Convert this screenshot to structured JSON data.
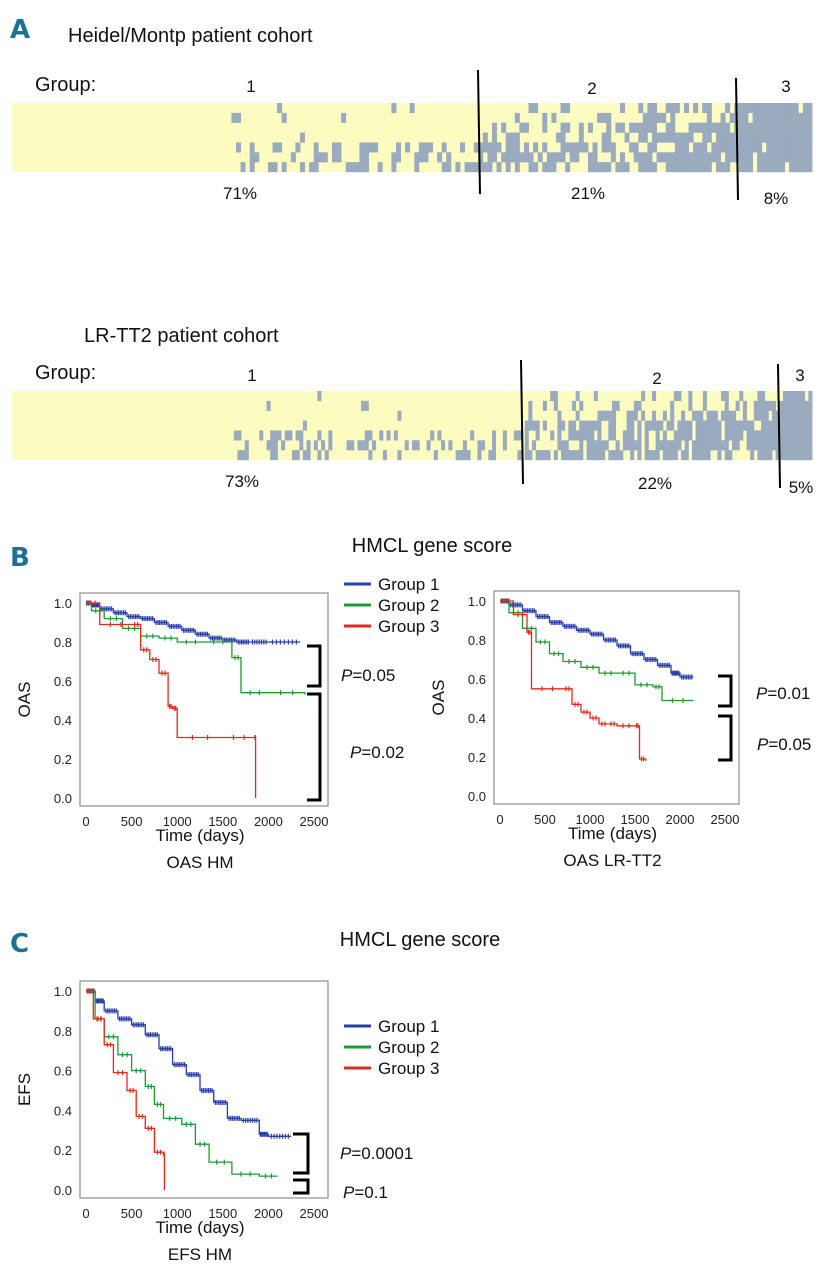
{
  "panel_letters": [
    "A",
    "B",
    "C"
  ],
  "heatmap_cohorts": [
    {
      "title": "Heidel/Montp patient cohort",
      "group_label": "Group:",
      "groups": [
        "1",
        "2",
        "3"
      ],
      "percentages": [
        "71%",
        "21%",
        "8%"
      ],
      "rows": 7,
      "columns": 175,
      "group_fractions": [
        0.71,
        0.21,
        0.08
      ],
      "colors": {
        "background": "#fdfcc0",
        "mark": "#9aaabf",
        "divider": "#000000"
      }
    },
    {
      "title": "LR-TT2 patient cohort",
      "group_label": "Group:",
      "groups": [
        "1",
        "2",
        "3"
      ],
      "percentages": [
        "73%",
        "22%",
        "5%"
      ],
      "rows": 7,
      "columns": 220,
      "group_fractions": [
        0.73,
        0.22,
        0.05
      ],
      "colors": {
        "background": "#fdfcc0",
        "mark": "#9aaabf",
        "divider": "#000000"
      }
    }
  ],
  "section_titles": {
    "B": "HMCL gene score",
    "C": "HMCL gene score"
  },
  "legend": [
    {
      "name": "Group 1",
      "color": "#2a3fa8"
    },
    {
      "name": "Group 2",
      "color": "#1e9a35"
    },
    {
      "name": "Group 3",
      "color": "#e02a1e"
    }
  ],
  "chart_data": [
    {
      "type": "line",
      "subtype": "kaplan-meier",
      "caption": "OAS HM",
      "xlabel": "Time (days)",
      "ylabel": "OAS",
      "xlim": [
        0,
        2500
      ],
      "ylim": [
        0,
        1
      ],
      "xticks": [
        0,
        500,
        1000,
        1500,
        2000,
        2500
      ],
      "yticks": [
        0.0,
        0.2,
        0.4,
        0.6,
        0.8,
        1.0
      ],
      "series": [
        {
          "name": "Group 1",
          "x": [
            0,
            60,
            150,
            300,
            450,
            600,
            750,
            900,
            1050,
            1200,
            1350,
            1500,
            1650,
            1800,
            2000,
            2350
          ],
          "y": [
            1.0,
            0.99,
            0.97,
            0.95,
            0.93,
            0.92,
            0.9,
            0.88,
            0.86,
            0.84,
            0.82,
            0.81,
            0.8,
            0.8,
            0.8,
            0.8
          ]
        },
        {
          "name": "Group 2",
          "x": [
            0,
            60,
            200,
            400,
            600,
            800,
            1000,
            1300,
            1600,
            1700,
            2000,
            2400
          ],
          "y": [
            1.0,
            0.96,
            0.92,
            0.87,
            0.83,
            0.82,
            0.8,
            0.8,
            0.72,
            0.54,
            0.54,
            0.53
          ]
        },
        {
          "name": "Group 3",
          "x": [
            0,
            150,
            500,
            600,
            700,
            800,
            900,
            950,
            1000,
            1500,
            1850,
            1860
          ],
          "y": [
            1.0,
            0.89,
            0.89,
            0.76,
            0.71,
            0.64,
            0.47,
            0.46,
            0.31,
            0.31,
            0.31,
            0.0
          ]
        }
      ],
      "annotations": [
        {
          "text": "=0.05",
          "italic_prefix": "P"
        },
        {
          "text": "=0.02",
          "italic_prefix": "P"
        }
      ]
    },
    {
      "type": "line",
      "subtype": "kaplan-meier",
      "caption": "OAS LR-TT2",
      "xlabel": "Time (days)",
      "ylabel": "OAS",
      "xlim": [
        0,
        2500
      ],
      "ylim": [
        0,
        1
      ],
      "xticks": [
        0,
        500,
        1000,
        1500,
        2000,
        2500
      ],
      "yticks": [
        0.0,
        0.2,
        0.4,
        0.6,
        0.8,
        1.0
      ],
      "series": [
        {
          "name": "Group 1",
          "x": [
            0,
            100,
            250,
            400,
            550,
            700,
            850,
            1000,
            1150,
            1300,
            1450,
            1600,
            1750,
            1900,
            2000,
            2150
          ],
          "y": [
            1.0,
            0.98,
            0.95,
            0.92,
            0.89,
            0.87,
            0.85,
            0.83,
            0.8,
            0.77,
            0.73,
            0.7,
            0.67,
            0.63,
            0.61,
            0.61
          ]
        },
        {
          "name": "Group 2",
          "x": [
            0,
            100,
            250,
            400,
            550,
            700,
            900,
            1100,
            1300,
            1500,
            1700,
            1800,
            2150
          ],
          "y": [
            1.0,
            0.94,
            0.86,
            0.79,
            0.73,
            0.69,
            0.66,
            0.63,
            0.63,
            0.57,
            0.56,
            0.49,
            0.49
          ]
        },
        {
          "name": "Group 3",
          "x": [
            0,
            150,
            300,
            350,
            700,
            800,
            900,
            1000,
            1100,
            1200,
            1300,
            1500,
            1550,
            1620
          ],
          "y": [
            1.0,
            0.93,
            0.84,
            0.55,
            0.55,
            0.47,
            0.43,
            0.4,
            0.37,
            0.37,
            0.36,
            0.36,
            0.19,
            0.18
          ]
        }
      ],
      "annotations": [
        {
          "text": "=0.01",
          "italic_prefix": "P"
        },
        {
          "text": "=0.05",
          "italic_prefix": "P"
        }
      ]
    },
    {
      "type": "line",
      "subtype": "kaplan-meier",
      "caption": "EFS HM",
      "xlabel": "Time (days)",
      "ylabel": "EFS",
      "xlim": [
        0,
        2500
      ],
      "ylim": [
        0,
        1
      ],
      "xticks": [
        0,
        500,
        1000,
        1500,
        2000,
        2500
      ],
      "yticks": [
        0.0,
        0.2,
        0.4,
        0.6,
        0.8,
        1.0
      ],
      "series": [
        {
          "name": "Group 1",
          "x": [
            0,
            100,
            200,
            350,
            500,
            650,
            800,
            950,
            1100,
            1250,
            1400,
            1550,
            1700,
            1900,
            2000,
            2250
          ],
          "y": [
            1.0,
            0.95,
            0.9,
            0.86,
            0.83,
            0.78,
            0.71,
            0.63,
            0.58,
            0.5,
            0.44,
            0.36,
            0.35,
            0.28,
            0.27,
            0.27
          ]
        },
        {
          "name": "Group 2",
          "x": [
            0,
            100,
            200,
            350,
            500,
            650,
            750,
            850,
            1050,
            1200,
            1350,
            1600,
            1900,
            2100
          ],
          "y": [
            1.0,
            0.86,
            0.77,
            0.68,
            0.6,
            0.52,
            0.43,
            0.36,
            0.33,
            0.23,
            0.14,
            0.08,
            0.07,
            0.07
          ]
        },
        {
          "name": "Group 3",
          "x": [
            0,
            80,
            200,
            300,
            450,
            550,
            650,
            750,
            850,
            860
          ],
          "y": [
            1.0,
            0.86,
            0.73,
            0.59,
            0.5,
            0.37,
            0.31,
            0.19,
            0.18,
            0.0
          ]
        }
      ],
      "annotations": [
        {
          "text": "=0.0001",
          "italic_prefix": "P"
        },
        {
          "text": "=0.1",
          "italic_prefix": "P"
        }
      ]
    }
  ]
}
